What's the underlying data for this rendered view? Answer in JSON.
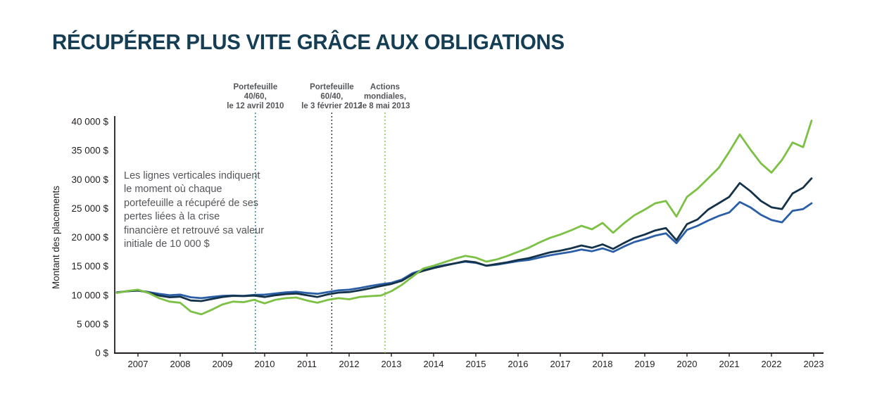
{
  "page": {
    "title": "RÉCUPÉRER PLUS VITE GRÂCE AUX OBLIGATIONS"
  },
  "annotation": {
    "text": "Les lignes verticales indiquent le moment où chaque portefeuille a récupéré de ses pertes liées à la crise financière et retrouvé sa valeur initiale de 10 000 $"
  },
  "colors": {
    "title": "#153e55",
    "axis_text": "#231f20",
    "annotation_text": "#54565a",
    "background": "#ffffff"
  },
  "chart_data": {
    "type": "line",
    "title": "RÉCUPÉRER PLUS VITE GRÂCE AUX OBLIGATIONS",
    "xlabel": "",
    "ylabel": "Montant des placements",
    "ylim": [
      0,
      40000
    ],
    "y_tick_step": 5000,
    "y_tick_labels": [
      "0 $",
      "5 000 $",
      "10 000 $",
      "15 000 $",
      "20 000 $",
      "25 000 $",
      "30 000 $",
      "35 000 $",
      "40 000 $"
    ],
    "x_ticks": [
      2007,
      2008,
      2009,
      2010,
      2011,
      2012,
      2013,
      2014,
      2015,
      2016,
      2017,
      2018,
      2019,
      2020,
      2021,
      2022,
      2023
    ],
    "grid": false,
    "legend": "none",
    "x": [
      2007.0,
      2007.25,
      2007.5,
      2007.75,
      2008.0,
      2008.25,
      2008.5,
      2008.75,
      2009.0,
      2009.25,
      2009.5,
      2009.75,
      2010.0,
      2010.25,
      2010.5,
      2010.75,
      2011.0,
      2011.25,
      2011.5,
      2011.75,
      2012.0,
      2012.25,
      2012.5,
      2012.75,
      2013.0,
      2013.25,
      2013.5,
      2013.75,
      2014.0,
      2014.25,
      2014.5,
      2014.75,
      2015.0,
      2015.25,
      2015.5,
      2015.75,
      2016.0,
      2016.25,
      2016.5,
      2016.75,
      2017.0,
      2017.25,
      2017.5,
      2017.75,
      2018.0,
      2018.25,
      2018.5,
      2018.75,
      2019.0,
      2019.25,
      2019.5,
      2019.75,
      2020.0,
      2020.25,
      2020.5,
      2020.75,
      2021.0,
      2021.25,
      2021.5,
      2021.75,
      2022.0,
      2022.25,
      2022.5,
      2022.75,
      2023.0,
      2023.25,
      2023.45
    ],
    "series": [
      {
        "id": "portefeuille-40-60",
        "name": "Portefeuille 40/60",
        "color": "#2a5fa8",
        "values": [
          10500,
          10700,
          10800,
          10550,
          10250,
          10000,
          10100,
          9650,
          9500,
          9700,
          9900,
          9950,
          9900,
          10050,
          10100,
          10300,
          10500,
          10600,
          10400,
          10250,
          10550,
          10850,
          10950,
          11250,
          11600,
          11900,
          12150,
          12700,
          13800,
          14400,
          14800,
          15200,
          15500,
          15800,
          15600,
          15100,
          15300,
          15600,
          15900,
          16100,
          16500,
          16900,
          17200,
          17500,
          17900,
          17600,
          18100,
          17500,
          18400,
          19200,
          19700,
          20300,
          20700,
          19000,
          21300,
          22000,
          22900,
          23700,
          24300,
          26100,
          25200,
          23900,
          23000,
          22600,
          24600,
          24900,
          25900
        ]
      },
      {
        "id": "portefeuille-60-40",
        "name": "Portefeuille 60/40",
        "color": "#14324a",
        "values": [
          10450,
          10700,
          10850,
          10450,
          9950,
          9650,
          9750,
          9100,
          9000,
          9350,
          9700,
          9900,
          9850,
          9950,
          9700,
          10000,
          10200,
          10300,
          10000,
          9700,
          10150,
          10450,
          10550,
          10850,
          11200,
          11600,
          11950,
          12500,
          13600,
          14200,
          14700,
          15100,
          15500,
          15900,
          15700,
          15100,
          15400,
          15700,
          16100,
          16400,
          16900,
          17400,
          17700,
          18100,
          18600,
          18200,
          18800,
          18000,
          19000,
          19900,
          20500,
          21200,
          21600,
          19500,
          22300,
          23100,
          24800,
          25900,
          27000,
          29400,
          28000,
          26300,
          25200,
          24900,
          27600,
          28600,
          30200
        ]
      },
      {
        "id": "actions-mondiales",
        "name": "Actions mondiales",
        "color": "#7cc144",
        "values": [
          10400,
          10750,
          10950,
          10400,
          9500,
          8900,
          8700,
          7200,
          6700,
          7500,
          8400,
          8900,
          8800,
          9200,
          8600,
          9200,
          9500,
          9600,
          9100,
          8700,
          9200,
          9500,
          9300,
          9700,
          9850,
          9950,
          10700,
          11800,
          13200,
          14600,
          15100,
          15700,
          16300,
          16800,
          16500,
          15800,
          16200,
          16800,
          17500,
          18200,
          19100,
          19900,
          20500,
          21200,
          22000,
          21400,
          22500,
          20800,
          22400,
          23800,
          24800,
          25900,
          26300,
          23600,
          27000,
          28400,
          30200,
          32000,
          34800,
          37800,
          35200,
          32800,
          31200,
          33400,
          36400,
          35600,
          40200
        ]
      }
    ],
    "markers": [
      {
        "series": "Portefeuille 40/60",
        "label_lines": [
          "Portefeuille",
          "40/60,",
          "le 12 avril 2010"
        ],
        "x": 2010.28,
        "color": "#37788c"
      },
      {
        "series": "Portefeuille 60/40",
        "label_lines": [
          "Portefeuille",
          "60/40,",
          "le 3 février 2012"
        ],
        "x": 2012.09,
        "color": "#14324a"
      },
      {
        "series": "Actions mondiales",
        "label_lines": [
          "Actions",
          "mondiales,",
          "le 8 mai 2013"
        ],
        "x": 2013.35,
        "color": "#7cc144"
      }
    ]
  }
}
